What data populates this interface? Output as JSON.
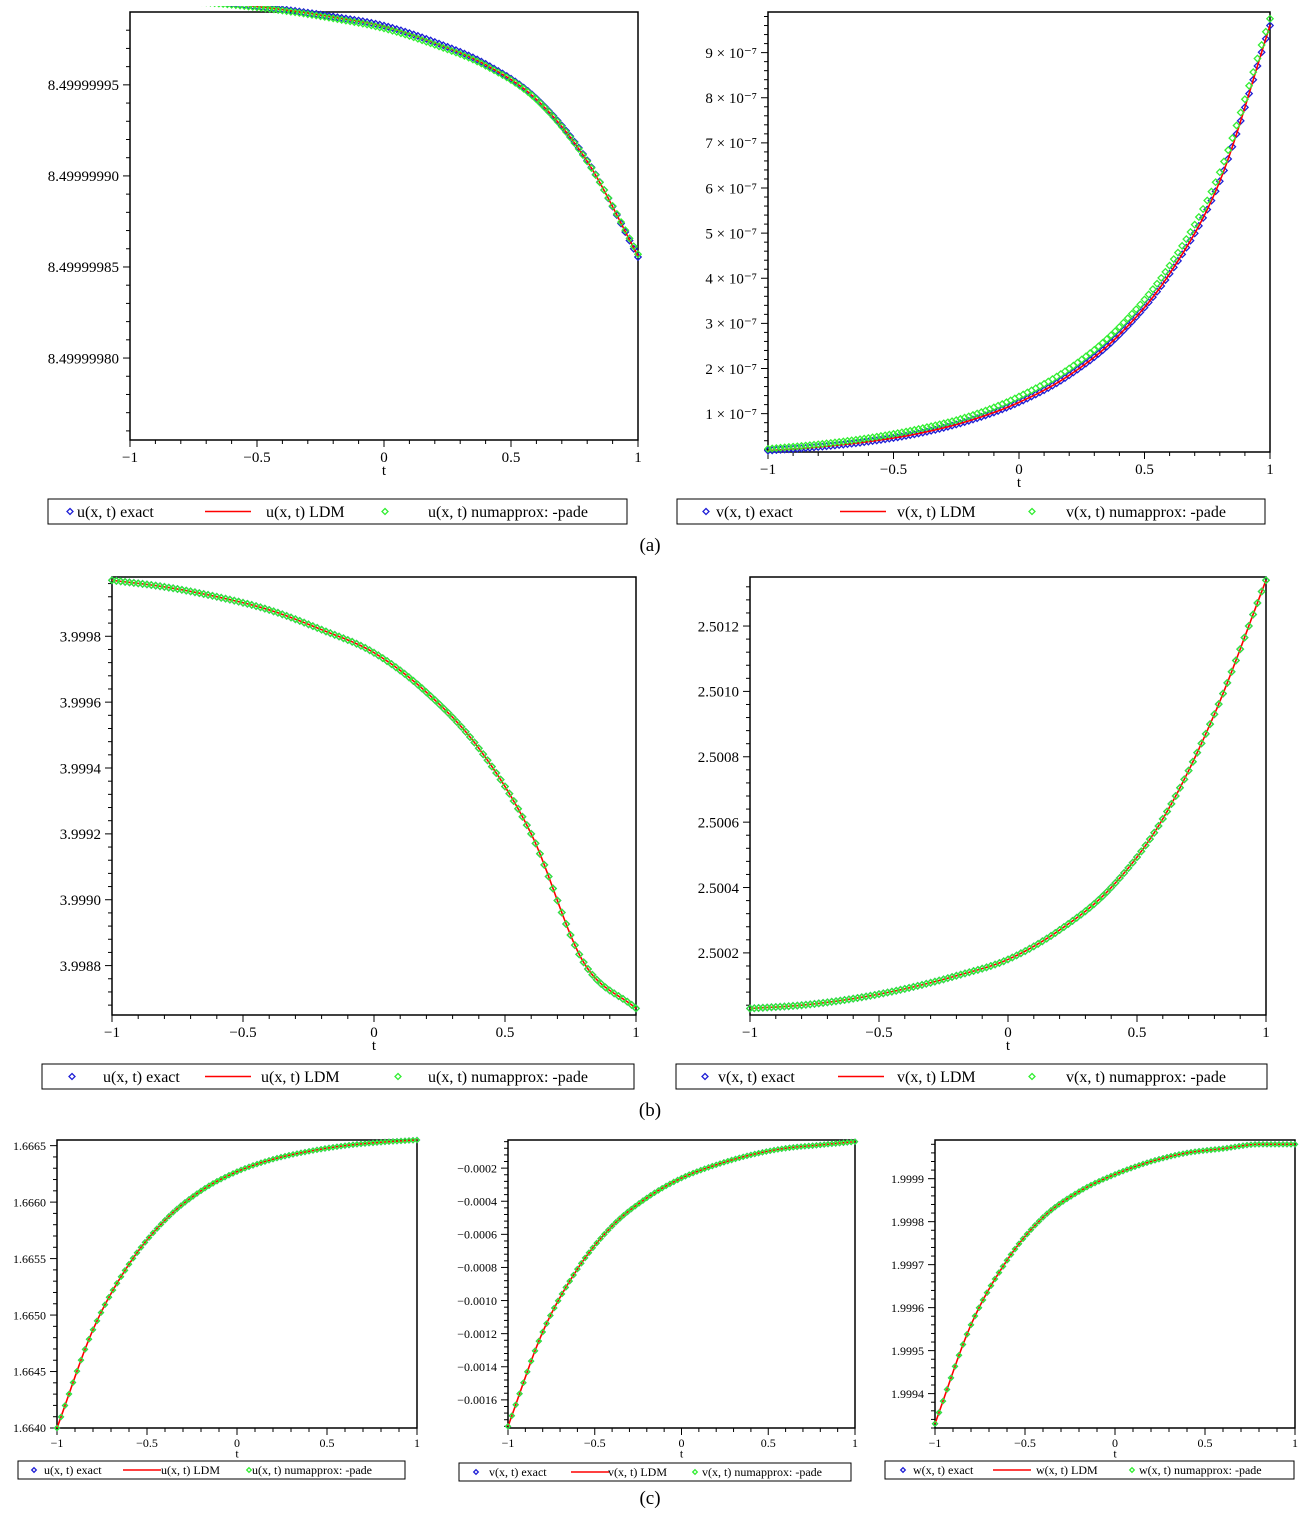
{
  "captions": [
    "(a)",
    "(b)",
    "(c)"
  ],
  "colors": {
    "exact": "#1f1fd6",
    "ldm": "#ff0000",
    "pade": "#33ee33",
    "axis": "#000000"
  },
  "chart_data": [
    {
      "type": "line",
      "panel": "(a)",
      "xlabel": "t",
      "xlim": [
        -1,
        1
      ],
      "ylim": [
        8.499999755,
        8.49999999
      ],
      "xticks": [
        -1,
        -0.5,
        0,
        0.5,
        1
      ],
      "xtick_labels": [
        "−1",
        "−0.5",
        "0",
        "0.5",
        "1"
      ],
      "yticks": [
        8.4999998,
        8.49999985,
        8.4999999,
        8.49999995
      ],
      "ytick_labels": [
        "8.49999980",
        "8.49999985",
        "8.49999990",
        "8.49999995"
      ],
      "legend": [
        "u(x, t)  exact",
        "u(x, t) LDM",
        "u(x, t) numapprox: -pade"
      ],
      "series": [
        {
          "name": "u(x, t)  exact",
          "style": "diamond",
          "x": [
            -1,
            -0.8,
            -0.6,
            -0.4,
            -0.2,
            0,
            0.2,
            0.4,
            0.6,
            0.8,
            1
          ],
          "y": [
            8.4999999968,
            8.4999999965,
            8.4999999945,
            8.4999999915,
            8.4999999875,
            8.4999999825,
            8.4999999735,
            8.4999999615,
            8.4999999425,
            8.4999999085,
            8.4999998555
          ]
        },
        {
          "name": "u(x, t) LDM",
          "style": "line",
          "x": [
            -1,
            -0.8,
            -0.6,
            -0.4,
            -0.2,
            0,
            0.2,
            0.4,
            0.6,
            0.8,
            1
          ],
          "y": [
            8.4999999968,
            8.4999999964,
            8.4999999944,
            8.4999999913,
            8.4999999872,
            8.4999999821,
            8.499999973,
            8.499999961,
            8.499999942,
            8.499999908,
            8.499999856
          ]
        },
        {
          "name": "u(x, t) numapprox: -pade",
          "style": "diamond",
          "x": [
            -1,
            -0.8,
            -0.6,
            -0.4,
            -0.2,
            0,
            0.2,
            0.4,
            0.6,
            0.8,
            1
          ],
          "y": [
            8.4999999968,
            8.4999999962,
            8.499999994,
            8.4999999908,
            8.4999999865,
            8.499999981,
            8.499999972,
            8.4999999605,
            8.499999942,
            8.499999908,
            8.499999857
          ]
        }
      ]
    },
    {
      "type": "line",
      "panel": "(a)",
      "xlabel": "t",
      "xlim": [
        -1,
        1
      ],
      "ylim": [
        1.5e-08,
        9.9e-07
      ],
      "xticks": [
        -1,
        -0.5,
        0,
        0.5,
        1
      ],
      "xtick_labels": [
        "−1",
        "−0.5",
        "0",
        "0.5",
        "1"
      ],
      "yticks": [
        1e-07,
        2e-07,
        3e-07,
        4e-07,
        5e-07,
        6e-07,
        7e-07,
        8e-07,
        9e-07
      ],
      "ytick_labels": [
        "1 × 10⁻⁷",
        "2 × 10⁻⁷",
        "3 × 10⁻⁷",
        "4 × 10⁻⁷",
        "5 × 10⁻⁷",
        "6 × 10⁻⁷",
        "7 × 10⁻⁷",
        "8 × 10⁻⁷",
        "9 × 10⁻⁷"
      ],
      "legend": [
        "v(x, t)  exact",
        "v(x, t) LDM",
        "v(x, t) numapprox: -pade"
      ],
      "series": [
        {
          "name": "v(x, t)  exact",
          "style": "diamond",
          "x": [
            -1,
            -0.8,
            -0.6,
            -0.4,
            -0.2,
            0,
            0.2,
            0.4,
            0.6,
            0.8,
            1
          ],
          "y": [
            1.8e-08,
            2.6e-08,
            3.8e-08,
            5.6e-08,
            8.4e-08,
            1.25e-07,
            1.85e-07,
            2.75e-07,
            4.1e-07,
            6.15e-07,
            9.6e-07
          ]
        },
        {
          "name": "v(x, t) LDM",
          "style": "line",
          "x": [
            -1,
            -0.8,
            -0.6,
            -0.4,
            -0.2,
            0,
            0.2,
            0.4,
            0.6,
            0.8,
            1
          ],
          "y": [
            1.8e-08,
            2.6e-08,
            3.8e-08,
            5.6e-08,
            8.4e-08,
            1.25e-07,
            1.85e-07,
            2.75e-07,
            4.1e-07,
            6.15e-07,
            9.6e-07
          ]
        },
        {
          "name": "v(x, t) numapprox: -pade",
          "style": "diamond",
          "x": [
            -1,
            -0.8,
            -0.6,
            -0.4,
            -0.2,
            0,
            0.2,
            0.4,
            0.6,
            0.8,
            1
          ],
          "y": [
            2.2e-08,
            3.2e-08,
            4.6e-08,
            6.6e-08,
            9.4e-08,
            1.38e-07,
            2e-07,
            2.92e-07,
            4.28e-07,
            6.35e-07,
            9.75e-07
          ]
        }
      ]
    },
    {
      "type": "line",
      "panel": "(b)",
      "xlabel": "t",
      "xlim": [
        -1,
        1
      ],
      "ylim": [
        3.99865,
        3.99998
      ],
      "xticks": [
        -1,
        -0.5,
        0,
        0.5,
        1
      ],
      "xtick_labels": [
        "−1",
        "−0.5",
        "0",
        "0.5",
        "1"
      ],
      "yticks": [
        3.9988,
        3.999,
        3.9992,
        3.9994,
        3.9996,
        3.9998
      ],
      "ytick_labels": [
        "3.9988",
        "3.9990",
        "3.9992",
        "3.9994",
        "3.9996",
        "3.9998"
      ],
      "legend": [
        "u(x, t)  exact",
        "u(x, t) LDM",
        "u(x, t) numapprox: -pade"
      ],
      "series": [
        {
          "name": "u(x, t)  exact",
          "style": "diamond",
          "x": [
            -1,
            -0.8,
            -0.6,
            -0.4,
            -0.2,
            0,
            0.2,
            0.4,
            0.6,
            0.8,
            1
          ],
          "y": [
            3.99997,
            3.99995,
            3.99992,
            3.99988,
            3.99982,
            3.99975,
            3.99963,
            3.99946,
            3.9992,
            3.99881,
            3.99867
          ]
        },
        {
          "name": "u(x, t) LDM",
          "style": "line",
          "x": [
            -1,
            -0.8,
            -0.6,
            -0.4,
            -0.2,
            0,
            0.2,
            0.4,
            0.6,
            0.8,
            1
          ],
          "y": [
            3.99997,
            3.99995,
            3.99992,
            3.99988,
            3.99982,
            3.99975,
            3.99963,
            3.99946,
            3.9992,
            3.99881,
            3.99867
          ]
        },
        {
          "name": "u(x, t) numapprox: -pade",
          "style": "diamond",
          "x": [
            -1,
            -0.8,
            -0.6,
            -0.4,
            -0.2,
            0,
            0.2,
            0.4,
            0.6,
            0.8,
            1
          ],
          "y": [
            3.99997,
            3.99995,
            3.99992,
            3.99988,
            3.99982,
            3.99975,
            3.99963,
            3.99946,
            3.9992,
            3.99881,
            3.99867
          ]
        }
      ]
    },
    {
      "type": "line",
      "panel": "(b)",
      "xlabel": "t",
      "xlim": [
        -1,
        1
      ],
      "ylim": [
        2.50001,
        2.50135
      ],
      "xticks": [
        -1,
        -0.5,
        0,
        0.5,
        1
      ],
      "xtick_labels": [
        "−1",
        "−0.5",
        "0",
        "0.5",
        "1"
      ],
      "yticks": [
        2.5002,
        2.5004,
        2.5006,
        2.5008,
        2.501,
        2.5012
      ],
      "ytick_labels": [
        "2.5002",
        "2.5004",
        "2.5006",
        "2.5008",
        "2.5010",
        "2.5012"
      ],
      "legend": [
        "v(x, t)  exact",
        "v(x, t) LDM",
        "v(x, t) numapprox: -pade"
      ],
      "series": [
        {
          "name": "v(x, t)  exact",
          "style": "diamond",
          "x": [
            -1,
            -0.8,
            -0.6,
            -0.4,
            -0.2,
            0,
            0.2,
            0.4,
            0.6,
            0.8,
            1
          ],
          "y": [
            2.50003,
            2.50004,
            2.50006,
            2.50009,
            2.50013,
            2.50018,
            2.50027,
            2.5004,
            2.50061,
            2.50093,
            2.50134
          ]
        },
        {
          "name": "v(x, t) LDM",
          "style": "line",
          "x": [
            -1,
            -0.8,
            -0.6,
            -0.4,
            -0.2,
            0,
            0.2,
            0.4,
            0.6,
            0.8,
            1
          ],
          "y": [
            2.50003,
            2.50004,
            2.50006,
            2.50009,
            2.50013,
            2.50018,
            2.50027,
            2.5004,
            2.50061,
            2.50093,
            2.50134
          ]
        },
        {
          "name": "v(x, t) numapprox: -pade",
          "style": "diamond",
          "x": [
            -1,
            -0.8,
            -0.6,
            -0.4,
            -0.2,
            0,
            0.2,
            0.4,
            0.6,
            0.8,
            1
          ],
          "y": [
            2.50003,
            2.50004,
            2.50006,
            2.50009,
            2.50013,
            2.50018,
            2.50027,
            2.5004,
            2.50061,
            2.50093,
            2.50134
          ]
        }
      ]
    },
    {
      "type": "line",
      "panel": "(c)",
      "xlabel": "t",
      "xlim": [
        -1,
        1
      ],
      "ylim": [
        1.664,
        1.66655
      ],
      "xticks": [
        -1,
        -0.5,
        0,
        0.5,
        1
      ],
      "xtick_labels": [
        "−1",
        "−0.5",
        "0",
        "0.5",
        "1"
      ],
      "yticks": [
        1.664,
        1.6645,
        1.665,
        1.6655,
        1.666,
        1.6665
      ],
      "ytick_labels": [
        "1.6640",
        "1.6645",
        "1.6650",
        "1.6655",
        "1.6660",
        "1.6665"
      ],
      "legend": [
        "u(x, t)  exact",
        "u(x, t) LDM",
        "u(x, t) numapprox: -pade"
      ],
      "series": [
        {
          "name": "u(x, t)  exact",
          "style": "diamond",
          "x": [
            -1,
            -0.8,
            -0.6,
            -0.4,
            -0.2,
            0,
            0.2,
            0.4,
            0.6,
            0.8,
            1
          ],
          "y": [
            1.664,
            1.66487,
            1.66545,
            1.66584,
            1.6661,
            1.66627,
            1.66638,
            1.66645,
            1.6665,
            1.66653,
            1.66655
          ]
        },
        {
          "name": "u(x, t) LDM",
          "style": "line",
          "x": [
            -1,
            -0.8,
            -0.6,
            -0.4,
            -0.2,
            0,
            0.2,
            0.4,
            0.6,
            0.8,
            1
          ],
          "y": [
            1.664,
            1.66487,
            1.66545,
            1.66584,
            1.6661,
            1.66627,
            1.66638,
            1.66645,
            1.6665,
            1.66653,
            1.66655
          ]
        },
        {
          "name": "u(x, t) numapprox: -pade",
          "style": "diamond",
          "x": [
            -1,
            -0.8,
            -0.6,
            -0.4,
            -0.2,
            0,
            0.2,
            0.4,
            0.6,
            0.8,
            1
          ],
          "y": [
            1.664,
            1.66487,
            1.66545,
            1.66584,
            1.6661,
            1.66627,
            1.66638,
            1.66645,
            1.6665,
            1.66653,
            1.66655
          ]
        }
      ]
    },
    {
      "type": "line",
      "panel": "(c)",
      "xlabel": "t",
      "xlim": [
        -1,
        1
      ],
      "ylim": [
        -0.00177,
        -3e-05
      ],
      "xticks": [
        -1,
        -0.5,
        0,
        0.5,
        1
      ],
      "xtick_labels": [
        "−1",
        "−0.5",
        "0",
        "0.5",
        "1"
      ],
      "yticks": [
        -0.0016,
        -0.0014,
        -0.0012,
        -0.001,
        -0.0008,
        -0.0006,
        -0.0004,
        -0.0002
      ],
      "ytick_labels": [
        "−0.0016",
        "−0.0014",
        "−0.0012",
        "−0.0010",
        "−0.0008",
        "−0.0006",
        "−0.0004",
        "−0.0002"
      ],
      "legend": [
        "v(x, t)  exact",
        "v(x, t) LDM",
        "v(x, t) numapprox: -pade"
      ],
      "series": [
        {
          "name": "v(x, t)  exact",
          "style": "diamond",
          "x": [
            -1,
            -0.8,
            -0.6,
            -0.4,
            -0.2,
            0,
            0.2,
            0.4,
            0.6,
            0.8,
            1
          ],
          "y": [
            -0.00176,
            -0.00119,
            -0.00081,
            -0.00055,
            -0.00038,
            -0.00026,
            -0.00018,
            -0.00012,
            -8e-05,
            -6e-05,
            -4e-05
          ]
        },
        {
          "name": "v(x, t) LDM",
          "style": "line",
          "x": [
            -1,
            -0.8,
            -0.6,
            -0.4,
            -0.2,
            0,
            0.2,
            0.4,
            0.6,
            0.8,
            1
          ],
          "y": [
            -0.00176,
            -0.00119,
            -0.00081,
            -0.00055,
            -0.00038,
            -0.00026,
            -0.00018,
            -0.00012,
            -8e-05,
            -6e-05,
            -4e-05
          ]
        },
        {
          "name": "v(x, t) numapprox: -pade",
          "style": "diamond",
          "x": [
            -1,
            -0.8,
            -0.6,
            -0.4,
            -0.2,
            0,
            0.2,
            0.4,
            0.6,
            0.8,
            1
          ],
          "y": [
            -0.00176,
            -0.00119,
            -0.00081,
            -0.00055,
            -0.00038,
            -0.00026,
            -0.00018,
            -0.00012,
            -8e-05,
            -6e-05,
            -4e-05
          ]
        }
      ]
    },
    {
      "type": "line",
      "panel": "(c)",
      "xlabel": "t",
      "xlim": [
        -1,
        1
      ],
      "ylim": [
        1.99932,
        1.99999
      ],
      "xticks": [
        -1,
        -0.5,
        0,
        0.5,
        1
      ],
      "xtick_labels": [
        "−1",
        "−0.5",
        "0",
        "0.5",
        "1"
      ],
      "yticks": [
        1.9994,
        1.9995,
        1.9996,
        1.9997,
        1.9998,
        1.9999
      ],
      "ytick_labels": [
        "1.9994",
        "1.9995",
        "1.9996",
        "1.9997",
        "1.9998",
        "1.9999"
      ],
      "legend": [
        "w(x, t)  exact",
        "w(x, t) LDM",
        "w(x, t) numapprox: -pade"
      ],
      "series": [
        {
          "name": "w(x, t)  exact",
          "style": "diamond",
          "x": [
            -1,
            -0.8,
            -0.6,
            -0.4,
            -0.2,
            0,
            0.2,
            0.4,
            0.6,
            0.8,
            1
          ],
          "y": [
            1.99933,
            1.99956,
            1.99971,
            1.99981,
            1.99987,
            1.99991,
            1.99994,
            1.99996,
            1.99997,
            1.99998,
            1.99998
          ]
        },
        {
          "name": "w(x, t) LDM",
          "style": "line",
          "x": [
            -1,
            -0.8,
            -0.6,
            -0.4,
            -0.2,
            0,
            0.2,
            0.4,
            0.6,
            0.8,
            1
          ],
          "y": [
            1.99933,
            1.99956,
            1.99971,
            1.99981,
            1.99987,
            1.99991,
            1.99994,
            1.99996,
            1.99997,
            1.99998,
            1.99998
          ]
        },
        {
          "name": "w(x, t) numapprox: -pade",
          "style": "diamond",
          "x": [
            -1,
            -0.8,
            -0.6,
            -0.4,
            -0.2,
            0,
            0.2,
            0.4,
            0.6,
            0.8,
            1
          ],
          "y": [
            1.99933,
            1.99956,
            1.99971,
            1.99981,
            1.99987,
            1.99991,
            1.99994,
            1.99996,
            1.99997,
            1.99998,
            1.99998
          ]
        }
      ]
    }
  ]
}
